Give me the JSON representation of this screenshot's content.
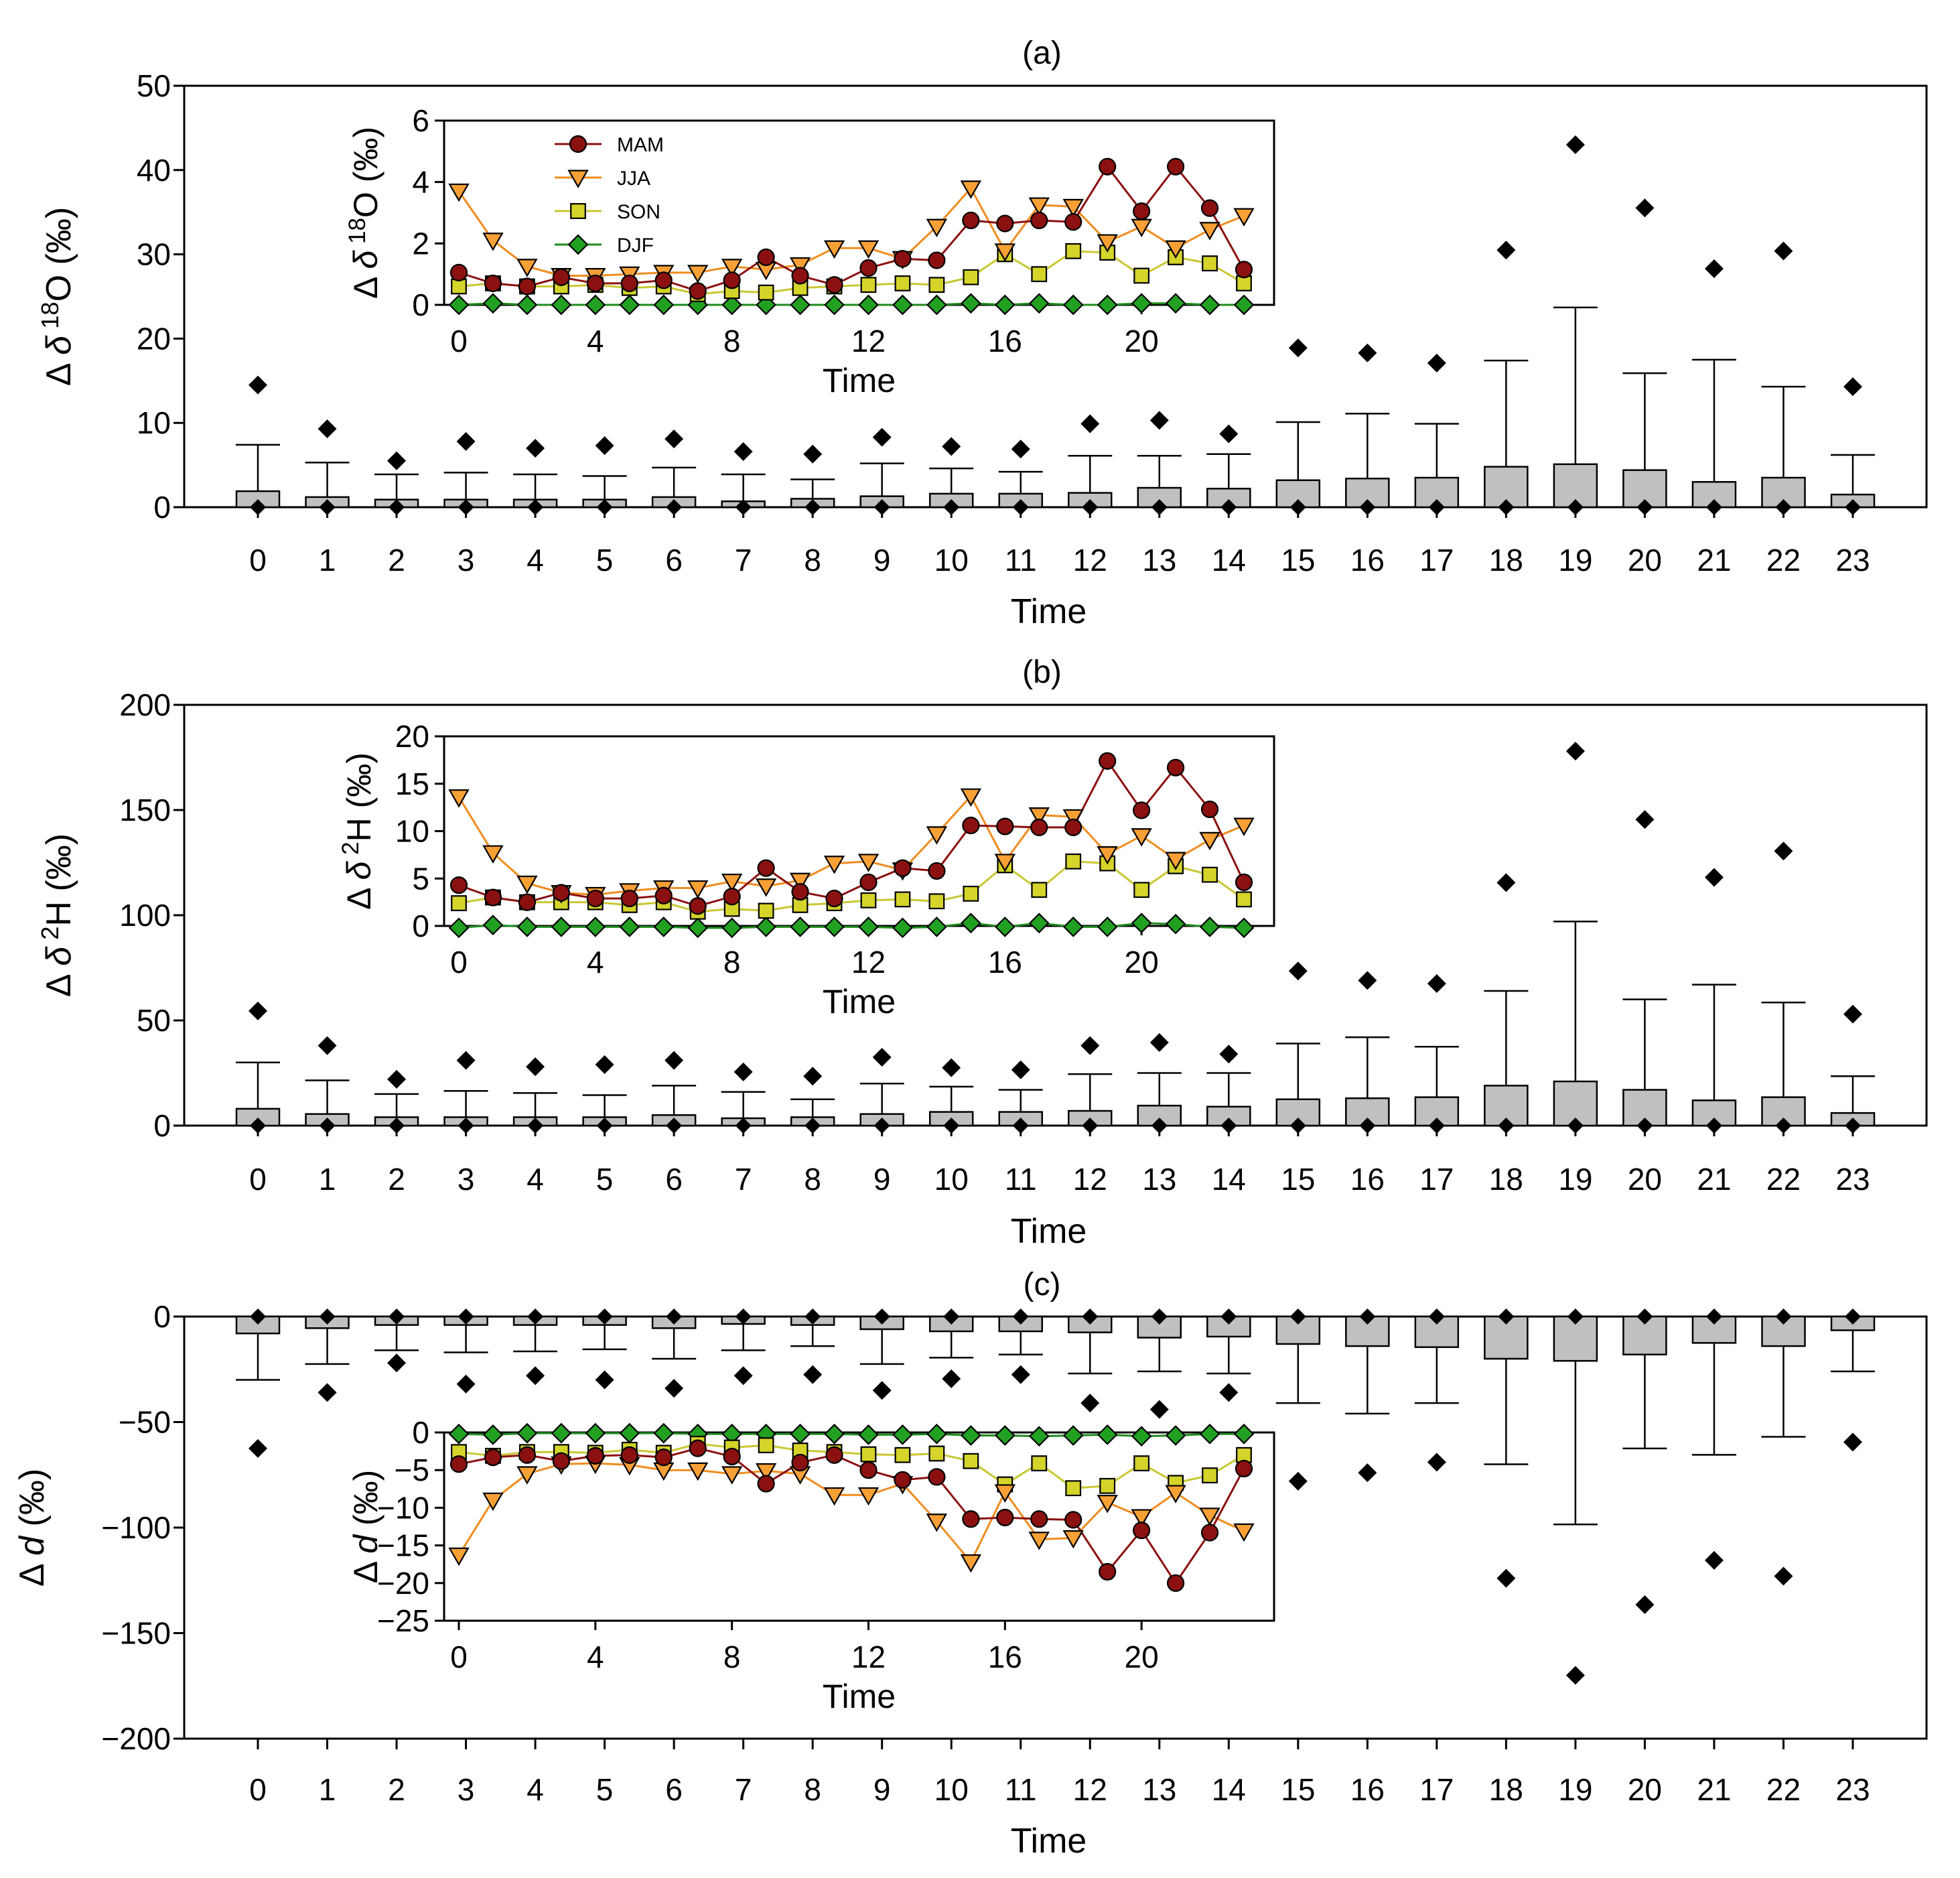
{
  "chart_data": [
    {
      "type": "box",
      "panel": "(a)",
      "title": "(a)",
      "xlabel": "Time",
      "ylabel": "Δδ¹⁸O (‰)",
      "ylabel_parts": [
        "Δ",
        "δ",
        "18",
        "O (‰)"
      ],
      "ylim": [
        0,
        50
      ],
      "yticks": [
        0,
        10,
        20,
        30,
        40,
        50
      ],
      "categories": [
        "0",
        "1",
        "2",
        "3",
        "4",
        "5",
        "6",
        "7",
        "8",
        "9",
        "10",
        "11",
        "12",
        "13",
        "14",
        "15",
        "16",
        "17",
        "18",
        "19",
        "20",
        "21",
        "22",
        "23"
      ],
      "box_q3": [
        1.9,
        1.2,
        0.9,
        0.9,
        0.9,
        0.9,
        1.2,
        0.7,
        1.0,
        1.3,
        1.6,
        1.6,
        1.7,
        2.3,
        2.2,
        3.2,
        3.4,
        3.5,
        4.8,
        5.1,
        4.4,
        3.0,
        3.5,
        1.5
      ],
      "whisker_high": [
        7.4,
        5.3,
        3.9,
        4.1,
        3.9,
        3.7,
        4.7,
        3.9,
        3.3,
        5.2,
        4.6,
        4.2,
        6.1,
        6.1,
        6.3,
        10.1,
        11.1,
        9.9,
        17.4,
        23.7,
        15.9,
        17.5,
        14.3,
        6.2
      ],
      "outlier_high": [
        14.5,
        9.3,
        5.5,
        7.8,
        7.0,
        7.3,
        8.1,
        6.6,
        6.3,
        8.3,
        7.2,
        6.9,
        9.9,
        10.3,
        8.7,
        18.9,
        18.3,
        17.1,
        30.5,
        43.0,
        35.5,
        28.3,
        30.4,
        14.3
      ],
      "outlier_low": [
        0,
        0,
        0,
        0,
        0,
        0,
        0,
        0,
        0,
        0,
        0,
        0,
        0,
        0,
        0,
        0,
        0,
        0,
        0,
        0,
        0,
        0,
        0,
        0
      ],
      "inset": {
        "type": "line",
        "xlabel": "Time",
        "ylabel": "Δδ¹⁸O (‰)",
        "ylabel_parts": [
          "Δ",
          "δ",
          "18",
          "O (‰)"
        ],
        "ylim": [
          0,
          6
        ],
        "yticks": [
          0,
          2,
          4,
          6
        ],
        "xticks": [
          0,
          4,
          8,
          12,
          16,
          20
        ],
        "x": [
          0,
          1,
          2,
          3,
          4,
          5,
          6,
          7,
          8,
          9,
          10,
          11,
          12,
          13,
          14,
          15,
          16,
          17,
          18,
          19,
          20,
          21,
          22,
          23
        ],
        "series": [
          {
            "name": "MAM",
            "values": [
              1.05,
              0.7,
              0.6,
              0.9,
              0.7,
              0.7,
              0.8,
              0.45,
              0.8,
              1.55,
              0.95,
              0.65,
              1.2,
              1.5,
              1.45,
              2.75,
              2.65,
              2.75,
              2.7,
              4.5,
              3.05,
              4.5,
              3.15,
              1.15
            ]
          },
          {
            "name": "JJA",
            "values": [
              3.7,
              2.1,
              1.25,
              0.95,
              0.95,
              1.0,
              1.05,
              1.05,
              1.25,
              1.15,
              1.3,
              1.85,
              1.85,
              1.5,
              2.55,
              3.8,
              1.75,
              3.25,
              3.2,
              2.05,
              2.55,
              1.85,
              2.45,
              2.9
            ]
          },
          {
            "name": "SON",
            "values": [
              0.6,
              0.7,
              0.6,
              0.6,
              0.65,
              0.55,
              0.6,
              0.35,
              0.45,
              0.4,
              0.55,
              0.6,
              0.65,
              0.7,
              0.65,
              0.9,
              1.65,
              1.0,
              1.75,
              1.7,
              0.95,
              1.55,
              1.35,
              0.7
            ]
          },
          {
            "name": "DJF",
            "values": [
              0.0,
              0.05,
              0.0,
              0.0,
              0.0,
              0.0,
              0.0,
              0.0,
              0.0,
              0.0,
              0.0,
              0.0,
              0.0,
              0.0,
              0.0,
              0.05,
              0.0,
              0.05,
              0.0,
              0.0,
              0.05,
              0.05,
              0.0,
              0.0
            ]
          }
        ]
      }
    },
    {
      "type": "box",
      "panel": "(b)",
      "title": "(b)",
      "xlabel": "Time",
      "ylabel": "Δδ²H (‰)",
      "ylabel_parts": [
        "Δ",
        "δ",
        "2",
        "H (‰)"
      ],
      "ylim": [
        0,
        200
      ],
      "yticks": [
        0,
        50,
        100,
        150,
        200
      ],
      "categories": [
        "0",
        "1",
        "2",
        "3",
        "4",
        "5",
        "6",
        "7",
        "8",
        "9",
        "10",
        "11",
        "12",
        "13",
        "14",
        "15",
        "16",
        "17",
        "18",
        "19",
        "20",
        "21",
        "22",
        "23"
      ],
      "box_q3": [
        8,
        5.5,
        4,
        4,
        4,
        4,
        5,
        3.5,
        4,
        5.5,
        6.5,
        6.5,
        7,
        9.5,
        9,
        12.5,
        13,
        13.5,
        19,
        21,
        17,
        12,
        13.5,
        6
      ],
      "whisker_high": [
        30,
        21.5,
        15,
        16.5,
        15.5,
        14.5,
        19,
        16,
        12.5,
        20,
        18.5,
        17,
        24.5,
        25,
        25,
        39,
        42,
        37.5,
        64,
        97,
        60,
        67,
        58.5,
        23.5
      ],
      "outlier_high": [
        54.5,
        38,
        22,
        31,
        28,
        29,
        31,
        25.5,
        23.5,
        32.5,
        27.5,
        26.5,
        38,
        39.5,
        34,
        73.5,
        69,
        67.5,
        115.5,
        178,
        145.5,
        118,
        130.5,
        53
      ],
      "outlier_low": [
        0,
        0,
        0,
        0,
        0,
        0,
        0,
        0,
        0,
        0,
        0,
        0,
        0,
        0,
        0,
        0,
        0,
        0,
        0,
        0,
        0,
        0,
        0,
        0
      ],
      "inset": {
        "type": "line",
        "xlabel": "Time",
        "ylabel": "Δδ²H (‰)",
        "ylabel_parts": [
          "Δ",
          "δ",
          "2",
          "H (‰)"
        ],
        "ylim": [
          0,
          20
        ],
        "yticks": [
          0,
          5,
          10,
          15,
          20
        ],
        "xticks": [
          0,
          4,
          8,
          12,
          16,
          20
        ],
        "x": [
          0,
          1,
          2,
          3,
          4,
          5,
          6,
          7,
          8,
          9,
          10,
          11,
          12,
          13,
          14,
          15,
          16,
          17,
          18,
          19,
          20,
          21,
          22,
          23
        ],
        "series": [
          {
            "name": "MAM",
            "values": [
              4.3,
              3.0,
              2.5,
              3.5,
              2.9,
              2.9,
              3.2,
              2.1,
              3.1,
              6.1,
              3.6,
              2.9,
              4.6,
              6.1,
              5.8,
              10.6,
              10.5,
              10.4,
              10.4,
              17.4,
              12.2,
              16.7,
              12.3,
              4.6
            ]
          },
          {
            "name": "JJA",
            "values": [
              13.6,
              7.7,
              4.5,
              3.5,
              3.3,
              3.7,
              4.0,
              4.0,
              4.7,
              4.2,
              4.8,
              6.6,
              6.8,
              5.9,
              9.7,
              13.7,
              6.8,
              11.7,
              11.5,
              7.6,
              9.5,
              7.0,
              9.1,
              10.6
            ]
          },
          {
            "name": "SON",
            "values": [
              2.4,
              3.0,
              2.5,
              2.5,
              2.5,
              2.2,
              2.5,
              1.5,
              1.8,
              1.6,
              2.2,
              2.4,
              2.7,
              2.8,
              2.6,
              3.4,
              6.4,
              3.8,
              6.8,
              6.6,
              3.8,
              6.3,
              5.4,
              2.8
            ]
          },
          {
            "name": "DJF",
            "values": [
              -0.2,
              0.1,
              -0.1,
              -0.1,
              -0.1,
              -0.1,
              -0.1,
              -0.2,
              -0.2,
              -0.1,
              -0.1,
              -0.1,
              -0.1,
              -0.2,
              -0.1,
              0.3,
              -0.1,
              0.3,
              -0.1,
              -0.1,
              0.3,
              0.2,
              -0.1,
              -0.2
            ]
          }
        ]
      }
    },
    {
      "type": "box",
      "panel": "(c)",
      "title": "(c)",
      "xlabel": "Time",
      "ylabel": "Δd (‰)",
      "ylabel_parts": [
        "Δ",
        "d",
        "",
        " (‰)"
      ],
      "ylim": [
        -200,
        0
      ],
      "yticks": [
        -200,
        -150,
        -100,
        -50,
        0
      ],
      "categories": [
        "0",
        "1",
        "2",
        "3",
        "4",
        "5",
        "6",
        "7",
        "8",
        "9",
        "10",
        "11",
        "12",
        "13",
        "14",
        "15",
        "16",
        "17",
        "18",
        "19",
        "20",
        "21",
        "22",
        "23"
      ],
      "box_q3": [
        -8,
        -5.5,
        -4,
        -4,
        -4,
        -4,
        -5.5,
        -3.5,
        -4,
        -6,
        -7,
        -7,
        -7.5,
        -10,
        -9.5,
        -13,
        -14,
        -14.5,
        -20,
        -21,
        -18,
        -12.5,
        -14,
        -6.5
      ],
      "whisker_high": [
        -30,
        -22.5,
        -16,
        -17,
        -16.5,
        -15.5,
        -20,
        -16,
        -14,
        -22.5,
        -19.5,
        -18,
        -27,
        -26,
        -27,
        -41,
        -46,
        -41,
        -70,
        -98.5,
        -62.5,
        -65.5,
        -57,
        -26
      ],
      "outlier_high": [
        -62.5,
        -36,
        -22,
        -32,
        -28,
        -30,
        -34,
        -28,
        -27.5,
        -35,
        -29.5,
        -27.5,
        -41,
        -44,
        -36,
        -78,
        -74,
        -69,
        -124,
        -170,
        -136.5,
        -115.5,
        -123,
        -59.5
      ],
      "outlier_low": [
        0,
        0,
        0,
        0,
        0,
        0,
        0,
        0,
        0,
        0,
        0,
        0,
        0,
        0,
        0,
        0,
        0,
        0,
        0,
        0,
        0,
        0,
        0,
        0
      ],
      "inset": {
        "type": "line",
        "xlabel": "Time",
        "ylabel": "Δd (‰)",
        "ylabel_parts": [
          "Δ",
          "d",
          "",
          " (‰)"
        ],
        "ylim": [
          -25,
          0
        ],
        "yticks": [
          -25,
          -20,
          -15,
          -10,
          -5,
          0
        ],
        "xticks": [
          0,
          4,
          8,
          12,
          16,
          20
        ],
        "x": [
          0,
          1,
          2,
          3,
          4,
          5,
          6,
          7,
          8,
          9,
          10,
          11,
          12,
          13,
          14,
          15,
          16,
          17,
          18,
          19,
          20,
          21,
          22,
          23
        ],
        "series": [
          {
            "name": "MAM",
            "values": [
              -4.2,
              -3.3,
              -3.0,
              -3.8,
              -3.1,
              -3.0,
              -3.3,
              -2.1,
              -3.2,
              -6.8,
              -4.0,
              -3.0,
              -5.0,
              -6.3,
              -5.9,
              -11.5,
              -11.3,
              -11.5,
              -11.6,
              -18.5,
              -13.0,
              -20.0,
              -13.3,
              -4.8
            ]
          },
          {
            "name": "JJA",
            "values": [
              -16.3,
              -9.0,
              -5.5,
              -4.2,
              -4.1,
              -4.3,
              -5.0,
              -5.0,
              -5.5,
              -5.1,
              -5.5,
              -8.3,
              -8.3,
              -6.8,
              -11.8,
              -17.2,
              -7.9,
              -14.2,
              -14.0,
              -9.3,
              -11.2,
              -8.0,
              -11.0,
              -13.1
            ]
          },
          {
            "name": "SON",
            "values": [
              -2.6,
              -3.1,
              -2.6,
              -2.6,
              -2.7,
              -2.3,
              -2.7,
              -1.5,
              -2.0,
              -1.7,
              -2.4,
              -2.6,
              -2.9,
              -3.0,
              -2.8,
              -3.8,
              -6.9,
              -4.1,
              -7.4,
              -7.1,
              -4.1,
              -6.7,
              -5.7,
              -3.0
            ]
          },
          {
            "name": "DJF",
            "values": [
              -0.2,
              -0.3,
              -0.1,
              -0.1,
              -0.1,
              -0.1,
              -0.1,
              -0.2,
              -0.2,
              -0.2,
              -0.2,
              -0.2,
              -0.3,
              -0.3,
              -0.2,
              -0.4,
              -0.4,
              -0.5,
              -0.4,
              -0.3,
              -0.5,
              -0.4,
              -0.2,
              -0.2
            ]
          }
        ]
      }
    }
  ],
  "legend": [
    {
      "name": "MAM",
      "color": "#8b1010",
      "marker": "circle"
    },
    {
      "name": "JJA",
      "color": "#f08c1e",
      "marker": "triangle-down"
    },
    {
      "name": "SON",
      "color": "#c8c832",
      "marker": "square"
    },
    {
      "name": "DJF",
      "color": "#1e8c1e",
      "marker": "diamond"
    }
  ],
  "colors": {
    "box_fill": "#c0c0c0",
    "outlier": "#000000",
    "MAM_fill": "#8b1010",
    "JJA_fill": "#f7a035",
    "SON_fill": "#d4d42a",
    "DJF_fill": "#22a022"
  }
}
